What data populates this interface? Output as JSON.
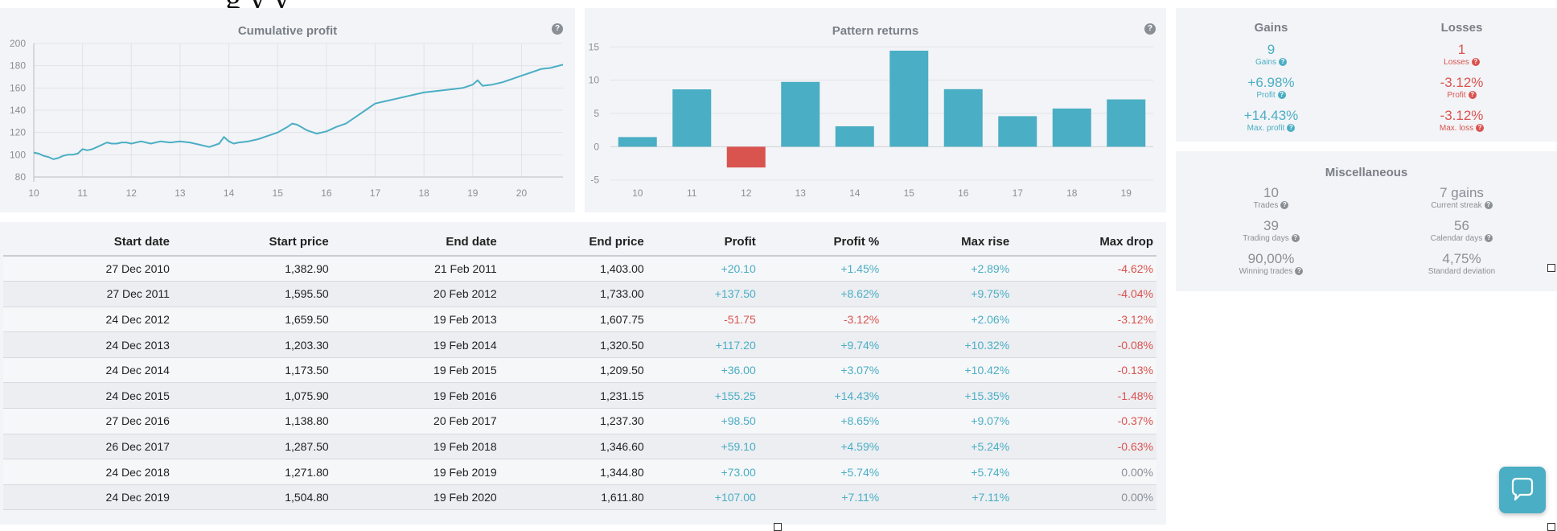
{
  "header_clip": "g         y                                                                                                        y",
  "cumulative": {
    "title": "Cumulative profit",
    "help_label": "?"
  },
  "pattern": {
    "title": "Pattern returns",
    "help_label": "?"
  },
  "chart_data": [
    {
      "type": "line",
      "title": "Cumulative profit",
      "x_ticks": [
        "10",
        "11",
        "12",
        "13",
        "14",
        "15",
        "16",
        "17",
        "18",
        "19",
        "20"
      ],
      "y_ticks": [
        80,
        100,
        120,
        140,
        160,
        180,
        200
      ],
      "ylim": [
        80,
        200
      ],
      "xlim": [
        10,
        20.85
      ],
      "grid": true,
      "x": [
        10.0,
        10.1,
        10.2,
        10.3,
        10.4,
        10.5,
        10.6,
        10.7,
        10.8,
        10.9,
        11.0,
        11.1,
        11.2,
        11.3,
        11.4,
        11.5,
        11.6,
        11.7,
        11.8,
        11.9,
        12.0,
        12.2,
        12.4,
        12.6,
        12.8,
        13.0,
        13.2,
        13.4,
        13.6,
        13.8,
        13.9,
        14.0,
        14.1,
        14.2,
        14.4,
        14.6,
        14.8,
        15.0,
        15.2,
        15.3,
        15.4,
        15.6,
        15.8,
        16.0,
        16.2,
        16.4,
        16.6,
        16.8,
        17.0,
        17.2,
        17.4,
        17.6,
        17.8,
        18.0,
        18.2,
        18.4,
        18.6,
        18.8,
        19.0,
        19.1,
        19.2,
        19.4,
        19.6,
        19.8,
        20.0,
        20.2,
        20.4,
        20.6,
        20.85
      ],
      "y": [
        102,
        101,
        99,
        98,
        96,
        97,
        99,
        100,
        100,
        101,
        105,
        104,
        105,
        107,
        109,
        111,
        110,
        110,
        111,
        111,
        110,
        112,
        110,
        112,
        111,
        112,
        111,
        109,
        107,
        110,
        116,
        112,
        110,
        111,
        112,
        114,
        117,
        120,
        125,
        128,
        127,
        122,
        119,
        121,
        125,
        128,
        134,
        140,
        146,
        148,
        150,
        152,
        154,
        156,
        157,
        158,
        159,
        160,
        163,
        167,
        162,
        163,
        165,
        168,
        171,
        174,
        177,
        178,
        181
      ]
    },
    {
      "type": "bar",
      "title": "Pattern returns",
      "categories": [
        "10",
        "11",
        "12",
        "13",
        "14",
        "15",
        "16",
        "17",
        "18",
        "19"
      ],
      "values": [
        1.45,
        8.62,
        -3.12,
        9.74,
        3.07,
        14.43,
        8.65,
        4.59,
        5.74,
        7.11
      ],
      "y_ticks": [
        -5,
        0,
        5,
        10,
        15
      ],
      "ylim": [
        -6,
        16
      ],
      "grid": true,
      "colors": {
        "positive": "#4aaec4",
        "negative": "#d9534f"
      }
    }
  ],
  "gains_losses": {
    "gains": {
      "header": "Gains",
      "items": [
        {
          "value": "9",
          "label": "Gains"
        },
        {
          "value": "+6.98%",
          "label": "Profit"
        },
        {
          "value": "+14.43%",
          "label": "Max. profit"
        }
      ]
    },
    "losses": {
      "header": "Losses",
      "items": [
        {
          "value": "1",
          "label": "Losses"
        },
        {
          "value": "-3.12%",
          "label": "Profit"
        },
        {
          "value": "-3.12%",
          "label": "Max. loss"
        }
      ]
    }
  },
  "misc": {
    "title": "Miscellaneous",
    "left": [
      {
        "value": "10",
        "label": "Trades"
      },
      {
        "value": "39",
        "label": "Trading days"
      },
      {
        "value": "90,00%",
        "label": "Winning trades"
      }
    ],
    "right": [
      {
        "value": "7 gains",
        "label": "Current streak"
      },
      {
        "value": "56",
        "label": "Calendar days"
      },
      {
        "value": "4,75%",
        "label": "Standard deviation"
      }
    ]
  },
  "table": {
    "headers": [
      "Start date",
      "Start price",
      "End date",
      "End price",
      "Profit",
      "Profit %",
      "Max rise",
      "Max drop"
    ],
    "rows": [
      [
        "27 Dec 2010",
        "1,382.90",
        "21 Feb 2011",
        "1,403.00",
        "+20.10",
        "+1.45%",
        "+2.89%",
        "-4.62%"
      ],
      [
        "27 Dec 2011",
        "1,595.50",
        "20 Feb 2012",
        "1,733.00",
        "+137.50",
        "+8.62%",
        "+9.75%",
        "-4.04%"
      ],
      [
        "24 Dec 2012",
        "1,659.50",
        "19 Feb 2013",
        "1,607.75",
        "-51.75",
        "-3.12%",
        "+2.06%",
        "-3.12%"
      ],
      [
        "24 Dec 2013",
        "1,203.30",
        "19 Feb 2014",
        "1,320.50",
        "+117.20",
        "+9.74%",
        "+10.32%",
        "-0.08%"
      ],
      [
        "24 Dec 2014",
        "1,173.50",
        "19 Feb 2015",
        "1,209.50",
        "+36.00",
        "+3.07%",
        "+10.42%",
        "-0.13%"
      ],
      [
        "24 Dec 2015",
        "1,075.90",
        "19 Feb 2016",
        "1,231.15",
        "+155.25",
        "+14.43%",
        "+15.35%",
        "-1.48%"
      ],
      [
        "27 Dec 2016",
        "1,138.80",
        "20 Feb 2017",
        "1,237.30",
        "+98.50",
        "+8.65%",
        "+9.07%",
        "-0.37%"
      ],
      [
        "26 Dec 2017",
        "1,287.50",
        "19 Feb 2018",
        "1,346.60",
        "+59.10",
        "+4.59%",
        "+5.24%",
        "-0.63%"
      ],
      [
        "24 Dec 2018",
        "1,271.80",
        "19 Feb 2019",
        "1,344.80",
        "+73.00",
        "+5.74%",
        "+5.74%",
        "0.00%"
      ],
      [
        "24 Dec 2019",
        "1,504.80",
        "19 Feb 2020",
        "1,611.80",
        "+107.00",
        "+7.11%",
        "+7.11%",
        "0.00%"
      ]
    ]
  },
  "colors": {
    "accent": "#4aaec4",
    "negative": "#d9534f",
    "muted": "#8a8f96",
    "panel": "#f3f4f7"
  },
  "icons": {
    "help": "help-icon",
    "chat": "chat-bubble-icon"
  }
}
